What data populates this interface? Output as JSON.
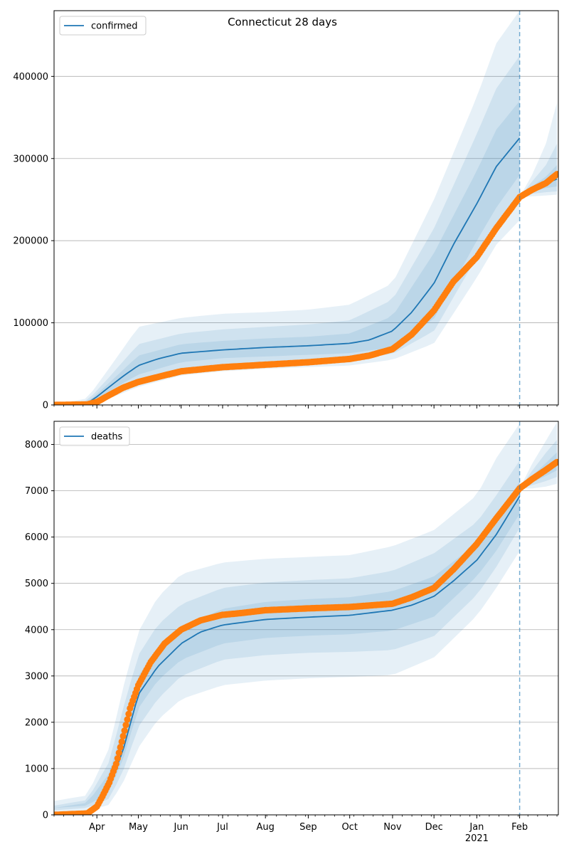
{
  "chart_data": [
    {
      "type": "line",
      "title": "Connecticut 28 days",
      "legend": {
        "entries": [
          "confirmed"
        ],
        "placement": "top-left"
      },
      "x_axis": {
        "type": "date",
        "range": [
          "2020-03-01",
          "2021-02-28"
        ],
        "tick_labels": [
          "Apr",
          "May",
          "Jun",
          "Jul",
          "Aug",
          "Sep",
          "Oct",
          "Nov",
          "Dec",
          "Jan",
          "Feb"
        ],
        "tick_dates": [
          "2020-04-01",
          "2020-05-01",
          "2020-06-01",
          "2020-07-01",
          "2020-08-01",
          "2020-09-01",
          "2020-10-01",
          "2020-11-01",
          "2020-12-01",
          "2021-01-01",
          "2021-02-01"
        ],
        "year_label": "2021",
        "tick_labels_shown": false
      },
      "y_axis": {
        "range": [
          0,
          480000
        ],
        "ticks": [
          0,
          100000,
          200000,
          300000,
          400000
        ]
      },
      "grid": "horizontal",
      "forecast_start": "2021-02-01",
      "series": [
        {
          "name": "confirmed",
          "kind": "model-median-line",
          "color": "#1f77b4",
          "dates": [
            "2020-03-01",
            "2020-03-20",
            "2020-03-25",
            "2020-04-01",
            "2020-04-10",
            "2020-04-20",
            "2020-05-01",
            "2020-05-15",
            "2020-06-01",
            "2020-07-01",
            "2020-08-01",
            "2020-09-01",
            "2020-10-01",
            "2020-10-15",
            "2020-11-01",
            "2020-11-15",
            "2020-12-01",
            "2020-12-15",
            "2021-01-01",
            "2021-01-15",
            "2021-02-01"
          ],
          "values": [
            0,
            500,
            2000,
            10000,
            22000,
            35000,
            48000,
            56000,
            63000,
            67000,
            70000,
            72000,
            75000,
            79000,
            90000,
            113000,
            148000,
            195000,
            245000,
            290000,
            325000
          ]
        },
        {
          "name": "confirmed forecast",
          "kind": "forecast-line",
          "color": "#1f77b4",
          "dates": [
            "2021-02-01",
            "2021-02-10",
            "2021-02-20",
            "2021-02-28"
          ],
          "values": [
            253000,
            262000,
            270000,
            275000
          ]
        },
        {
          "name": "confirmed observed",
          "kind": "observed-points",
          "color": "#ff7f0e",
          "dates": [
            "2020-03-01",
            "2020-03-25",
            "2020-04-01",
            "2020-04-10",
            "2020-04-20",
            "2020-05-01",
            "2020-05-15",
            "2020-06-01",
            "2020-07-01",
            "2020-08-01",
            "2020-09-01",
            "2020-10-01",
            "2020-10-15",
            "2020-11-01",
            "2020-11-15",
            "2020-12-01",
            "2020-12-15",
            "2021-01-01",
            "2021-01-15",
            "2021-02-01",
            "2021-02-10",
            "2021-02-20",
            "2021-02-28"
          ],
          "values": [
            0,
            600,
            3500,
            12000,
            21000,
            28000,
            34000,
            41000,
            46000,
            49000,
            52000,
            56000,
            60000,
            68000,
            86000,
            115000,
            150000,
            180000,
            215000,
            253000,
            262000,
            270000,
            281000
          ]
        }
      ],
      "uncertainty_bands": [
        {
          "dates": [
            "2020-03-01",
            "2020-03-25",
            "2020-04-10",
            "2020-05-01",
            "2020-06-01",
            "2020-07-01",
            "2020-08-01",
            "2020-09-01",
            "2020-10-01",
            "2020-11-01",
            "2020-12-01",
            "2021-01-01",
            "2021-01-15",
            "2021-02-01"
          ],
          "inner_lower": [
            0,
            1000,
            17000,
            37000,
            52000,
            57000,
            59000,
            61000,
            63000,
            70000,
            105000,
            200000,
            240000,
            280000
          ],
          "inner_upper": [
            0,
            3000,
            27000,
            60000,
            74000,
            78000,
            81000,
            83000,
            87000,
            108000,
            185000,
            285000,
            335000,
            370000
          ],
          "mid_lower": [
            0,
            500,
            12000,
            29000,
            44000,
            49000,
            51000,
            53000,
            56000,
            62000,
            90000,
            180000,
            220000,
            250000
          ],
          "mid_upper": [
            0,
            5000,
            34000,
            74000,
            87000,
            92000,
            95000,
            98000,
            103000,
            128000,
            215000,
            330000,
            385000,
            425000
          ],
          "outer_lower": [
            0,
            0,
            8000,
            22000,
            36000,
            41000,
            44000,
            46000,
            48000,
            55000,
            75000,
            155000,
            195000,
            225000
          ],
          "outer_upper": [
            0,
            8000,
            45000,
            95000,
            106000,
            111000,
            113000,
            116000,
            122000,
            148000,
            250000,
            375000,
            440000,
            480000
          ]
        },
        {
          "dates": [
            "2021-02-01",
            "2021-02-10",
            "2021-02-20",
            "2021-02-28"
          ],
          "inner_lower": [
            253000,
            260000,
            264000,
            266000
          ],
          "inner_upper": [
            253000,
            266000,
            278000,
            292000
          ],
          "mid_lower": [
            253000,
            257000,
            259000,
            260000
          ],
          "mid_upper": [
            253000,
            272000,
            292000,
            318000
          ],
          "outer_lower": [
            253000,
            254000,
            255000,
            256000
          ],
          "outer_upper": [
            253000,
            280000,
            318000,
            368000
          ]
        }
      ]
    },
    {
      "type": "line",
      "title": "",
      "legend": {
        "entries": [
          "deaths"
        ],
        "placement": "top-left"
      },
      "x_axis": {
        "type": "date",
        "range": [
          "2020-03-01",
          "2021-02-28"
        ],
        "tick_labels": [
          "Apr",
          "May",
          "Jun",
          "Jul",
          "Aug",
          "Sep",
          "Oct",
          "Nov",
          "Dec",
          "Jan",
          "Feb"
        ],
        "tick_dates": [
          "2020-04-01",
          "2020-05-01",
          "2020-06-01",
          "2020-07-01",
          "2020-08-01",
          "2020-09-01",
          "2020-10-01",
          "2020-11-01",
          "2020-12-01",
          "2021-01-01",
          "2021-02-01"
        ],
        "year_label": "2021",
        "tick_labels_shown": true
      },
      "y_axis": {
        "range": [
          0,
          8500
        ],
        "ticks": [
          0,
          1000,
          2000,
          3000,
          4000,
          5000,
          6000,
          7000,
          8000
        ]
      },
      "grid": "horizontal",
      "forecast_start": "2021-02-01",
      "series": [
        {
          "name": "deaths",
          "kind": "model-median-line",
          "color": "#1f77b4",
          "dates": [
            "2020-03-01",
            "2020-03-25",
            "2020-04-01",
            "2020-04-10",
            "2020-04-20",
            "2020-05-01",
            "2020-05-15",
            "2020-06-01",
            "2020-06-15",
            "2020-07-01",
            "2020-08-01",
            "2020-09-01",
            "2020-10-01",
            "2020-11-01",
            "2020-11-15",
            "2020-12-01",
            "2020-12-15",
            "2021-01-01",
            "2021-01-15",
            "2021-02-01"
          ],
          "values": [
            0,
            30,
            150,
            600,
            1400,
            2600,
            3200,
            3700,
            3950,
            4100,
            4220,
            4270,
            4310,
            4420,
            4530,
            4720,
            5050,
            5500,
            6050,
            6880
          ]
        },
        {
          "name": "deaths forecast",
          "kind": "forecast-line",
          "color": "#1f77b4",
          "dates": [
            "2021-02-01",
            "2021-02-10",
            "2021-02-20",
            "2021-02-28"
          ],
          "values": [
            7050,
            7250,
            7450,
            7620
          ]
        },
        {
          "name": "deaths observed",
          "kind": "observed-points",
          "color": "#ff7f0e",
          "dates": [
            "2020-03-01",
            "2020-03-25",
            "2020-04-01",
            "2020-04-05",
            "2020-04-10",
            "2020-04-15",
            "2020-04-20",
            "2020-04-25",
            "2020-05-01",
            "2020-05-10",
            "2020-05-20",
            "2020-06-01",
            "2020-06-15",
            "2020-07-01",
            "2020-07-15",
            "2020-08-01",
            "2020-09-01",
            "2020-10-01",
            "2020-11-01",
            "2020-11-15",
            "2020-12-01",
            "2020-12-15",
            "2021-01-01",
            "2021-01-15",
            "2021-02-01",
            "2021-02-10",
            "2021-02-20",
            "2021-02-28"
          ],
          "values": [
            0,
            30,
            180,
            400,
            700,
            1100,
            1700,
            2300,
            2800,
            3300,
            3700,
            4000,
            4200,
            4320,
            4360,
            4420,
            4460,
            4490,
            4560,
            4700,
            4900,
            5300,
            5850,
            6400,
            7050,
            7250,
            7450,
            7620
          ]
        }
      ],
      "uncertainty_bands": [
        {
          "dates": [
            "2020-03-01",
            "2020-03-25",
            "2020-04-10",
            "2020-04-20",
            "2020-05-01",
            "2020-05-15",
            "2020-06-01",
            "2020-07-01",
            "2020-08-01",
            "2020-09-01",
            "2020-10-01",
            "2020-11-01",
            "2020-12-01",
            "2021-01-01",
            "2021-01-15",
            "2021-02-01"
          ],
          "inner_lower": [
            150,
            200,
            500,
            1200,
            2300,
            2900,
            3350,
            3700,
            3820,
            3870,
            3900,
            3980,
            4280,
            5150,
            5700,
            6500
          ],
          "inner_upper": [
            150,
            260,
            900,
            1900,
            3000,
            3600,
            4050,
            4450,
            4600,
            4660,
            4700,
            4830,
            5150,
            5860,
            6400,
            7200
          ],
          "mid_lower": [
            100,
            150,
            350,
            950,
            1900,
            2500,
            3000,
            3350,
            3450,
            3500,
            3520,
            3560,
            3860,
            4750,
            5350,
            6200
          ],
          "mid_upper": [
            200,
            320,
            1150,
            2300,
            3450,
            4100,
            4550,
            4900,
            5020,
            5070,
            5110,
            5270,
            5650,
            6320,
            6900,
            7650
          ],
          "outer_lower": [
            50,
            80,
            220,
            700,
            1450,
            2050,
            2500,
            2800,
            2900,
            2950,
            2980,
            3020,
            3400,
            4300,
            4900,
            5700
          ],
          "outer_upper": [
            300,
            420,
            1450,
            2750,
            3950,
            4700,
            5200,
            5450,
            5530,
            5570,
            5610,
            5800,
            6150,
            6900,
            7700,
            8450
          ]
        },
        {
          "dates": [
            "2021-02-01",
            "2021-02-10",
            "2021-02-20",
            "2021-02-28"
          ],
          "inner_lower": [
            7050,
            7180,
            7320,
            7440
          ],
          "inner_upper": [
            7050,
            7320,
            7600,
            7830
          ],
          "mid_lower": [
            7050,
            7120,
            7210,
            7300
          ],
          "mid_upper": [
            7050,
            7430,
            7820,
            8100
          ],
          "outer_lower": [
            7050,
            7050,
            7090,
            7150
          ],
          "outer_upper": [
            7050,
            7580,
            8080,
            8480
          ]
        }
      ]
    }
  ],
  "colors": {
    "band": "#1f77b4",
    "median": "#1f77b4",
    "observed": "#ff7f0e",
    "forecast_line": "#1f77b4",
    "grid": "#b0b0b0"
  }
}
